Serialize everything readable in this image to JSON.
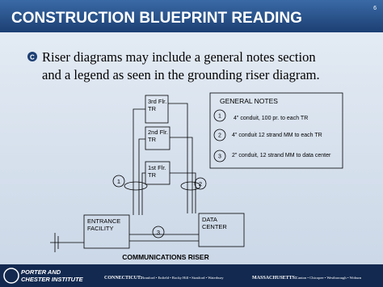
{
  "header": {
    "title": "CONSTRUCTION BLUEPRINT READING",
    "page_number": "6"
  },
  "bullet": {
    "lines": [
      "Riser diagrams may include a general notes section",
      "and a legend as seen in the grounding riser diagram."
    ]
  },
  "diagram": {
    "rooms": [
      {
        "lines": [
          "3rd Flr.",
          "TR"
        ]
      },
      {
        "lines": [
          "2nd Flr.",
          "TR"
        ]
      },
      {
        "lines": [
          "1st Flr.",
          "TR"
        ]
      },
      {
        "lines": [
          "ENTRANCE",
          "FACILITY"
        ]
      },
      {
        "lines": [
          "DATA",
          "CENTER"
        ]
      }
    ],
    "markers": [
      "1",
      "2",
      "3"
    ],
    "caption": "COMMUNICATIONS RISER"
  },
  "general_notes": {
    "title": "GENERAL NOTES",
    "notes": [
      {
        "number": "1",
        "text": "4\" conduit, 100 pr. to each TR"
      },
      {
        "number": "2",
        "text": "4\" conduit 12 strand MM to each TR"
      },
      {
        "number": "3",
        "text": "2\" conduit, 12 strand MM to data center"
      }
    ]
  },
  "footer": {
    "logo_line1": "PORTER AND",
    "logo_line2": "CHESTER INSTITUTE",
    "ct_state": "CONNECTICUT:",
    "ct_towns": "Branford • Enfield • Rocky Hill • Stratford • Waterbury",
    "ma_state": "MASSACHUSETTS:",
    "ma_towns": "Canton • Chicopee • Westborough • Woburn"
  }
}
